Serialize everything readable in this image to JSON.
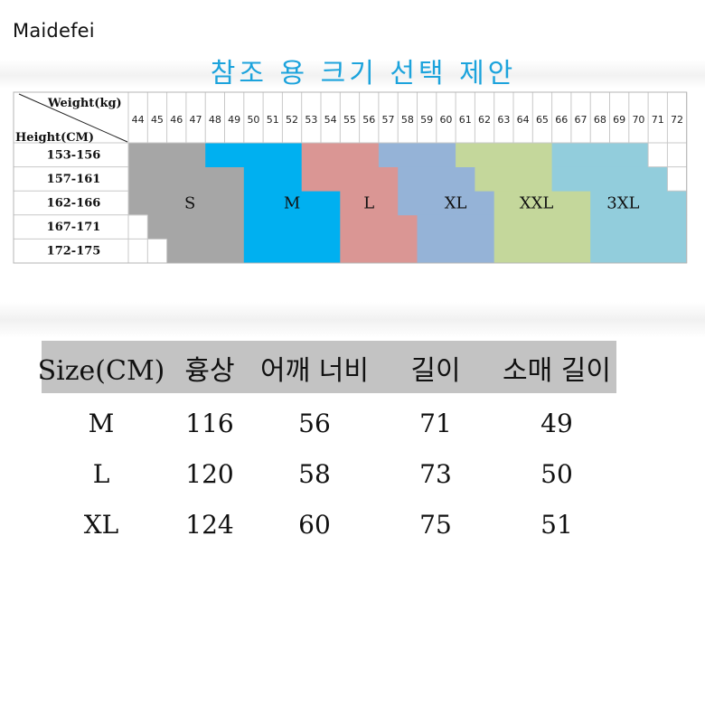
{
  "brand": "Maidefei",
  "title": "참조 용 크기 선택 제안",
  "chart": {
    "corner_weight": "Weight(kg)",
    "corner_height": "Height(CM)",
    "weights": [
      "44",
      "45",
      "46",
      "47",
      "48",
      "49",
      "50",
      "51",
      "52",
      "53",
      "54",
      "55",
      "56",
      "57",
      "58",
      "59",
      "60",
      "61",
      "62",
      "63",
      "64",
      "65",
      "66",
      "67",
      "68",
      "69",
      "70",
      "71",
      "72"
    ],
    "heights": [
      "153-156",
      "157-161",
      "162-166",
      "167-171",
      "172-175"
    ],
    "sizes": [
      {
        "label": "S",
        "color": "#a6a6a6",
        "ranges": [
          [
            0,
            3
          ],
          [
            0,
            5
          ],
          [
            0,
            5
          ],
          [
            1,
            5
          ],
          [
            2,
            5
          ]
        ]
      },
      {
        "label": "M",
        "color": "#00b0f0",
        "ranges": [
          [
            4,
            8
          ],
          [
            6,
            8
          ],
          [
            6,
            10
          ],
          [
            6,
            10
          ],
          [
            6,
            10
          ]
        ]
      },
      {
        "label": "L",
        "color": "#da9694",
        "ranges": [
          [
            9,
            12
          ],
          [
            9,
            13
          ],
          [
            11,
            13
          ],
          [
            11,
            14
          ],
          [
            11,
            14
          ]
        ]
      },
      {
        "label": "XL",
        "color": "#95b3d7",
        "ranges": [
          [
            13,
            17
          ],
          [
            14,
            17
          ],
          [
            14,
            18
          ],
          [
            15,
            18
          ],
          [
            15,
            18
          ]
        ]
      },
      {
        "label": "XXL",
        "color": "#c4d79b",
        "ranges": [
          [
            17,
            21
          ],
          [
            18,
            21
          ],
          [
            19,
            23
          ],
          [
            19,
            23
          ],
          [
            19,
            23
          ]
        ]
      },
      {
        "label": "3XL",
        "color": "#92cddc",
        "ranges": [
          [
            22,
            26
          ],
          [
            22,
            27
          ],
          [
            24,
            28
          ],
          [
            24,
            28
          ],
          [
            24,
            28
          ]
        ]
      }
    ]
  },
  "table": {
    "headers": [
      "Size(CM)",
      "흉상",
      "어깨 너비",
      "길이",
      "소매 길이"
    ],
    "rows": [
      [
        "M",
        "116",
        "56",
        "71",
        "49"
      ],
      [
        "L",
        "120",
        "58",
        "73",
        "50"
      ],
      [
        "XL",
        "124",
        "60",
        "75",
        "51"
      ]
    ]
  }
}
